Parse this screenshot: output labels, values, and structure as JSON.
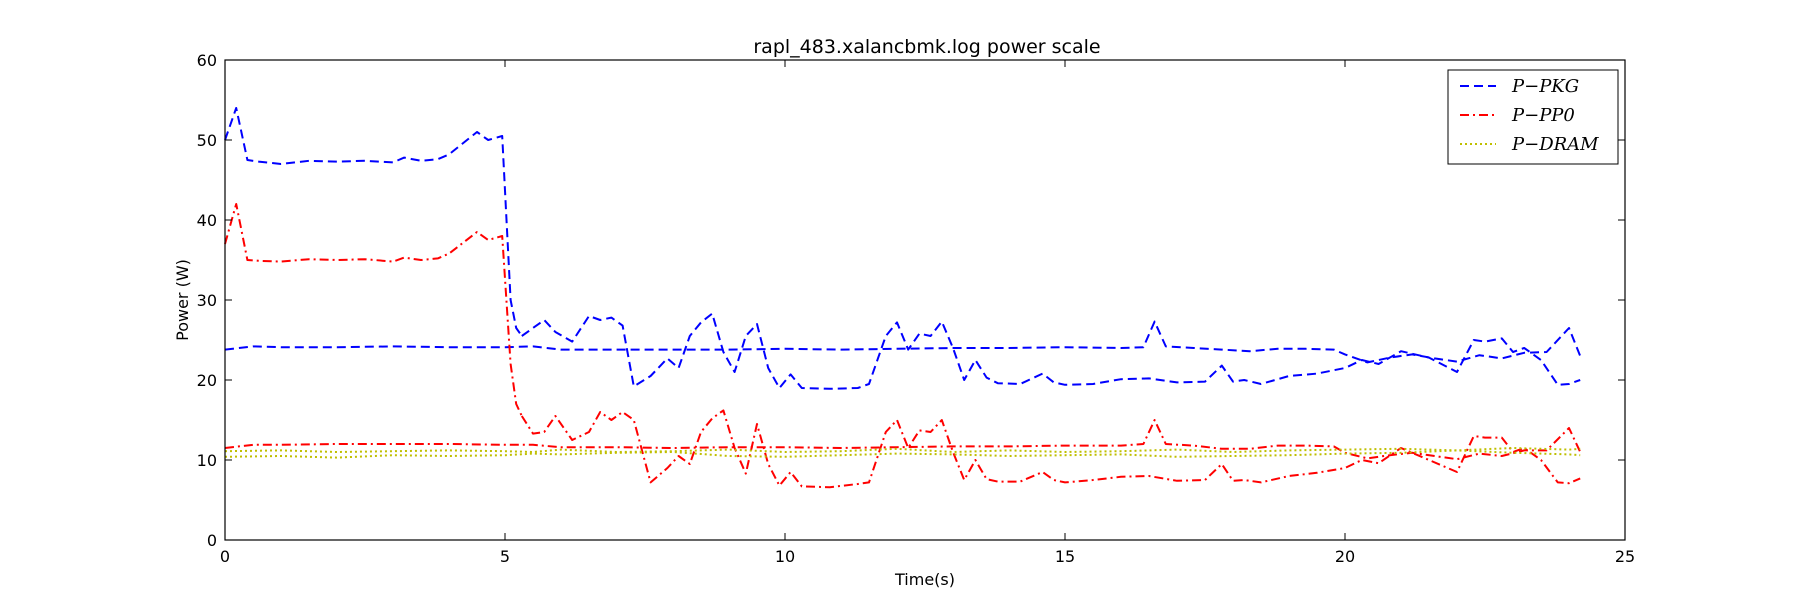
{
  "chart_data": {
    "type": "line",
    "title": "rapl_483.xalancbmk.log power scale",
    "xlabel": "Time(s)",
    "ylabel": "Power (W)",
    "xlim": [
      0,
      25
    ],
    "ylim": [
      0,
      60
    ],
    "xticks": [
      0,
      5,
      10,
      15,
      20,
      25
    ],
    "yticks": [
      0,
      10,
      20,
      30,
      40,
      50,
      60
    ],
    "grid": false,
    "legend_position": "top-right",
    "series": [
      {
        "name": "P−PKG",
        "color": "#0000ff",
        "dash": "dashed",
        "segments": [
          {
            "x": [
              0,
              0.2,
              0.4,
              0.6,
              1,
              1.5,
              2,
              2.5,
              3,
              3.2,
              3.5,
              3.8,
              4,
              4.5,
              4.7,
              4.95,
              5.1,
              5.2,
              5.3
            ],
            "y": [
              50,
              54,
              47.5,
              47.3,
              47,
              47.4,
              47.3,
              47.4,
              47.2,
              47.8,
              47.4,
              47.6,
              48.2,
              51,
              50,
              50.5,
              30,
              26.5,
              25.5
            ]
          },
          {
            "x": [
              5.3,
              5.7,
              5.9,
              6.2,
              6.5,
              6.7,
              6.9,
              7.1,
              7.3,
              7.6,
              7.9,
              8.1,
              8.3,
              8.5,
              8.7,
              8.9,
              9.1,
              9.3,
              9.5,
              9.7,
              9.9,
              10.1,
              10.3,
              10.8,
              11.3,
              11.5,
              11.8,
              12,
              12.2,
              12.4,
              12.6,
              12.8,
              13.0,
              13.2,
              13.4,
              13.6,
              13.8,
              14.2,
              14.6,
              14.8,
              15,
              15.5,
              16,
              16.5,
              17,
              17.5,
              17.8,
              18,
              18.2,
              18.5,
              19,
              19.5,
              20,
              20.3,
              20.6,
              21,
              21.5,
              22,
              22.3,
              22.5,
              22.8,
              23,
              23.2,
              23.5,
              23.8,
              24,
              24.2
            ],
            "y": [
              25.5,
              27.5,
              26,
              24.8,
              28,
              27.5,
              27.8,
              26.8,
              19.2,
              20.5,
              22.7,
              21.5,
              25.5,
              27.2,
              28.3,
              23.5,
              21,
              25.5,
              27,
              21.5,
              19,
              20.7,
              19,
              18.9,
              19,
              19.5,
              25.5,
              27.2,
              23.8,
              25.8,
              25.5,
              27.3,
              24,
              20,
              22.5,
              20.3,
              19.6,
              19.5,
              20.8,
              19.7,
              19.4,
              19.5,
              20.1,
              20.2,
              19.7,
              19.8,
              21.8,
              19.8,
              20,
              19.5,
              20.5,
              20.8,
              21.5,
              22.5,
              22,
              23.6,
              22.8,
              21,
              25,
              24.8,
              25.2,
              23.5,
              24,
              22.5,
              19.4,
              19.5,
              20
            ]
          },
          {
            "x": [
              0,
              0.5,
              1,
              2,
              3,
              4,
              5,
              5.5,
              6,
              7,
              8,
              9,
              10,
              11,
              12,
              13,
              14,
              15,
              16,
              16.4,
              16.6,
              16.8,
              17.3,
              17.8,
              18.3,
              18.8,
              19.3,
              19.8,
              20,
              20.4,
              20.8,
              21.2,
              21.6,
              22,
              22.4,
              22.8,
              23.2,
              23.6,
              24,
              24.2
            ],
            "y": [
              23.8,
              24.2,
              24.1,
              24.1,
              24.2,
              24.1,
              24.1,
              24.2,
              23.8,
              23.8,
              23.8,
              23.8,
              23.9,
              23.8,
              23.9,
              24.0,
              24.0,
              24.1,
              24.0,
              24.1,
              27.3,
              24.2,
              24.0,
              23.8,
              23.6,
              23.9,
              23.9,
              23.8,
              23.2,
              22.2,
              22.8,
              23.2,
              22.7,
              22.3,
              23.1,
              22.7,
              23.4,
              23.5,
              26.5,
              23
            ]
          }
        ]
      },
      {
        "name": "P−PP0",
        "color": "#ff0000",
        "dash": "dashdot",
        "segments": [
          {
            "x": [
              0,
              0.2,
              0.4,
              0.6,
              1,
              1.5,
              2,
              2.5,
              3,
              3.2,
              3.5,
              3.8,
              4,
              4.5,
              4.7,
              4.95,
              5.1,
              5.2,
              5.3
            ],
            "y": [
              37,
              42,
              35,
              34.9,
              34.8,
              35.1,
              35,
              35.1,
              34.8,
              35.3,
              35,
              35.2,
              35.8,
              38.5,
              37.5,
              38,
              22,
              17,
              15.5
            ]
          },
          {
            "x": [
              5.3,
              5.5,
              5.7,
              5.9,
              6.2,
              6.5,
              6.7,
              6.9,
              7.1,
              7.3,
              7.6,
              7.9,
              8.1,
              8.3,
              8.5,
              8.7,
              8.9,
              9.1,
              9.3,
              9.5,
              9.7,
              9.9,
              10.1,
              10.3,
              10.8,
              11.3,
              11.5,
              11.8,
              12,
              12.2,
              12.4,
              12.6,
              12.8,
              13.0,
              13.2,
              13.4,
              13.6,
              13.8,
              14.2,
              14.6,
              14.8,
              15,
              15.5,
              16,
              16.5,
              17,
              17.5,
              17.8,
              18,
              18.2,
              18.5,
              19,
              19.5,
              20,
              20.3,
              20.6,
              21,
              21.5,
              22,
              22.3,
              22.5,
              22.8,
              23,
              23.2,
              23.5,
              23.8,
              24,
              24.2
            ],
            "y": [
              15.5,
              13.3,
              13.5,
              15.5,
              12.5,
              13.5,
              16,
              15,
              16,
              15,
              7.2,
              9,
              10.5,
              9.5,
              13.5,
              15.2,
              16.2,
              11.5,
              8.3,
              14.5,
              9.5,
              6.8,
              8.5,
              6.7,
              6.6,
              7,
              7.2,
              13.5,
              15,
              11.5,
              13.7,
              13.5,
              15,
              11,
              7.5,
              10,
              7.6,
              7.3,
              7.3,
              8.5,
              7.5,
              7.2,
              7.5,
              7.9,
              8,
              7.4,
              7.5,
              9.5,
              7.4,
              7.5,
              7.2,
              8,
              8.4,
              9,
              10,
              9.6,
              11.5,
              10,
              8.5,
              13,
              12.8,
              12.8,
              11,
              11.5,
              10,
              7.2,
              7.1,
              7.7
            ]
          },
          {
            "x": [
              0,
              0.5,
              1,
              2,
              3,
              4,
              5,
              5.5,
              6,
              7,
              8,
              9,
              10,
              11,
              12,
              13,
              14,
              15,
              16,
              16.4,
              16.6,
              16.8,
              17.3,
              17.8,
              18.3,
              18.8,
              19.3,
              19.8,
              20,
              20.4,
              20.8,
              21.2,
              21.6,
              22,
              22.4,
              22.8,
              23.2,
              23.6,
              24,
              24.2
            ],
            "y": [
              11.5,
              11.9,
              11.9,
              12.0,
              12.0,
              12.0,
              11.9,
              11.9,
              11.6,
              11.6,
              11.5,
              11.6,
              11.6,
              11.5,
              11.6,
              11.7,
              11.7,
              11.8,
              11.8,
              12.0,
              15,
              12.0,
              11.8,
              11.4,
              11.4,
              11.8,
              11.8,
              11.7,
              10.9,
              10.2,
              10.6,
              10.9,
              10.5,
              10.1,
              10.8,
              10.5,
              11.2,
              11.2,
              14,
              11
            ]
          }
        ]
      },
      {
        "name": "P−DRAM",
        "color": "#bfbf00",
        "dash": "dotted",
        "segments": [
          {
            "x": [
              0,
              1,
              2,
              3,
              4,
              5,
              5.5,
              6,
              7,
              8,
              9,
              10,
              11,
              12,
              13,
              14,
              15,
              16,
              17,
              18,
              19,
              20,
              21,
              22,
              23,
              24,
              24.2
            ],
            "y": [
              10.4,
              10.5,
              10.3,
              10.6,
              10.5,
              10.6,
              10.8,
              10.7,
              10.9,
              11.0,
              10.5,
              10.4,
              10.6,
              10.8,
              10.7,
              10.5,
              10.6,
              10.7,
              10.4,
              10.5,
              10.6,
              10.8,
              10.9,
              11.2,
              10.9,
              10.7,
              10.6
            ]
          },
          {
            "x": [
              0,
              1,
              2,
              3,
              4,
              5,
              5.5,
              6,
              7,
              8,
              9,
              10,
              11,
              12,
              13,
              14,
              15,
              16,
              17,
              18,
              19,
              20,
              21,
              22,
              23,
              24,
              24.2
            ],
            "y": [
              11.1,
              11.2,
              11.0,
              11.1,
              11.2,
              11.1,
              11.0,
              11.3,
              11.0,
              11.1,
              11.3,
              11.0,
              11.1,
              11.4,
              11.0,
              11.2,
              11.0,
              11.1,
              11.3,
              11.0,
              11.2,
              11.3,
              11.4,
              11.2,
              11.5,
              11.3,
              11.4
            ]
          }
        ]
      }
    ]
  }
}
